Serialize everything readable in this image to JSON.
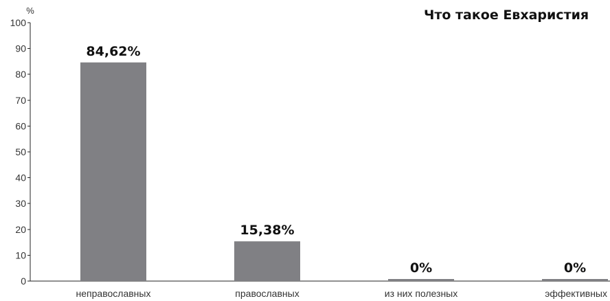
{
  "chart_data": {
    "type": "bar",
    "title": "Что такое Евхаристия",
    "y_unit_label": "%",
    "categories": [
      "неправославных",
      "православных",
      "из них полезных",
      "эффективных"
    ],
    "values": [
      84.62,
      15.38,
      0,
      0
    ],
    "value_labels": [
      "84,62%",
      "15,38%",
      "0%",
      "0%"
    ],
    "ylim": [
      0,
      100
    ],
    "yticks": [
      0,
      10,
      20,
      30,
      40,
      50,
      60,
      70,
      80,
      90,
      100
    ],
    "grid": false,
    "legend": "none",
    "bar_color": "#808084",
    "min_visible_bar_value": 0.8
  }
}
